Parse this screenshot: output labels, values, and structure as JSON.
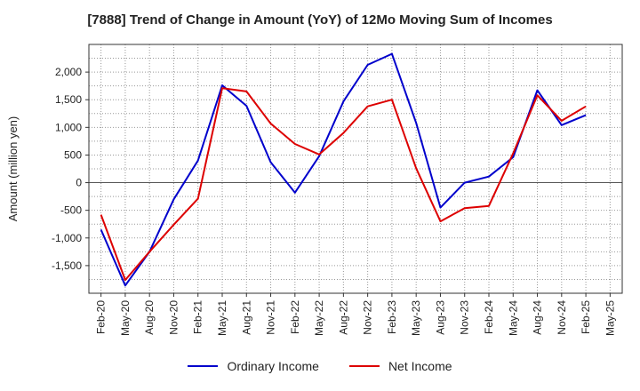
{
  "chart_data": {
    "type": "line",
    "title": "[7888]  Trend of Change in Amount (YoY) of 12Mo Moving Sum of Incomes",
    "ylabel": "Amount (million yen)",
    "xlabel": "",
    "ylim": [
      -2000,
      2500
    ],
    "yticks": [
      -1500,
      -1000,
      -500,
      0,
      500,
      1000,
      1500,
      2000
    ],
    "ytick_labels": [
      "-1,500",
      "-1,000",
      "-500",
      "0",
      "500",
      "1,000",
      "1,500",
      "2,000"
    ],
    "grid": true,
    "legend_position": "bottom",
    "x_tick_labels": [
      "Feb-20",
      "May-20",
      "Aug-20",
      "Nov-20",
      "Feb-21",
      "May-21",
      "Aug-21",
      "Nov-21",
      "Feb-22",
      "May-22",
      "Aug-22",
      "Nov-22",
      "Feb-23",
      "May-23",
      "Aug-23",
      "Nov-23",
      "Feb-24",
      "May-24",
      "Aug-24",
      "Nov-24",
      "Feb-25",
      "May-25"
    ],
    "series": [
      {
        "name": "Ordinary Income",
        "color": "#0000cc",
        "values": [
          -850,
          -1860,
          -1250,
          -300,
          400,
          1760,
          1390,
          370,
          -180,
          480,
          1470,
          2130,
          2330,
          1080,
          -450,
          0,
          110,
          460,
          1670,
          1040,
          1220
        ]
      },
      {
        "name": "Net Income",
        "color": "#dd0000",
        "values": [
          -580,
          -1760,
          -1250,
          -760,
          -290,
          1710,
          1650,
          1070,
          700,
          510,
          900,
          1380,
          1500,
          260,
          -700,
          -460,
          -420,
          530,
          1580,
          1120,
          1380
        ]
      }
    ]
  }
}
